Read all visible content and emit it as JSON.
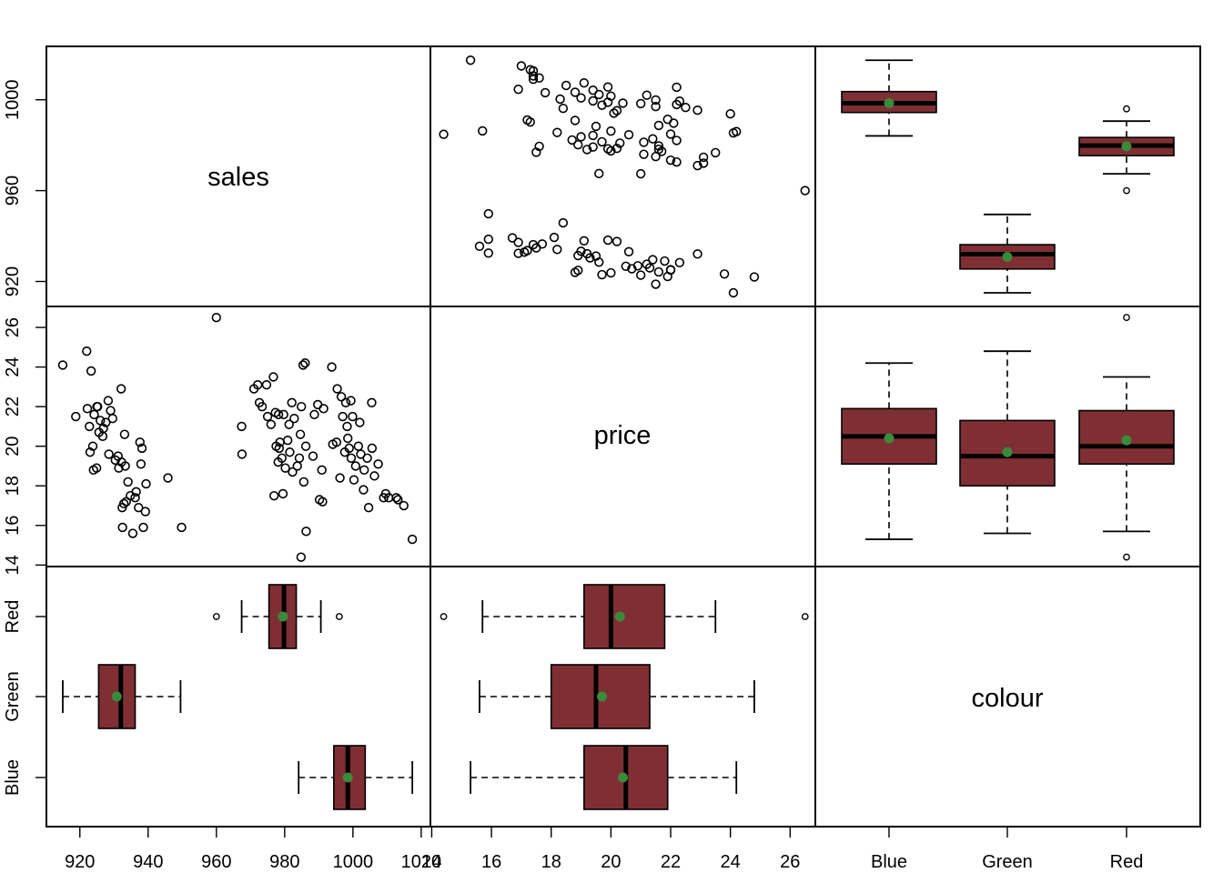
{
  "chart_data": {
    "type": "scatter-matrix",
    "variables": [
      "sales",
      "price",
      "colour"
    ],
    "styles": {
      "box_fill": "#7f2f33",
      "mean_color": "#3a8a3a",
      "median_color": "#000000"
    },
    "ticks": {
      "sales": [
        920,
        940,
        960,
        980,
        1000,
        1020
      ],
      "price": [
        14,
        16,
        18,
        20,
        22,
        24,
        26
      ],
      "colour": [
        "Blue",
        "Green",
        "Red"
      ]
    },
    "tick_labels": {
      "sales_axis_left": [
        "920",
        "960",
        "1000"
      ],
      "price_axis_left": [
        "14",
        "16",
        "18",
        "20",
        "22",
        "24",
        "26"
      ],
      "colour_axis_left": [
        "Blue",
        "Green",
        "Red"
      ],
      "sales_axis_bottom": [
        "920",
        "940",
        "960",
        "980",
        "1000",
        "1020"
      ],
      "price_axis_bottom": [
        "14",
        "16",
        "18",
        "20",
        "22",
        "24",
        "26"
      ],
      "colour_axis_bottom": [
        "Blue",
        "Green",
        "Red"
      ]
    },
    "ranges": {
      "sales": [
        913.4,
        1019.5
      ],
      "price": [
        14.2,
        26.6
      ]
    },
    "groups": {
      "Blue": {
        "sales_box": {
          "lower": 984.1,
          "q1": 994.4,
          "median": 998.5,
          "q3": 1003.6,
          "upper": 1017.4,
          "mean": 998.5,
          "outliers": []
        },
        "price_box": {
          "lower": 15.3,
          "q1": 19.1,
          "median": 20.5,
          "q3": 21.9,
          "upper": 24.2,
          "mean": 20.4,
          "outliers": []
        }
      },
      "Green": {
        "sales_box": {
          "lower": 915.0,
          "q1": 925.5,
          "median": 932.0,
          "q3": 936.2,
          "upper": 949.5,
          "mean": 930.8,
          "outliers": []
        },
        "price_box": {
          "lower": 15.6,
          "q1": 18.0,
          "median": 19.5,
          "q3": 21.3,
          "upper": 24.8,
          "mean": 19.7,
          "outliers": []
        }
      },
      "Red": {
        "sales_box": {
          "lower": 967.4,
          "q1": 975.4,
          "median": 979.8,
          "q3": 983.4,
          "upper": 990.6,
          "mean": 979.5,
          "outliers": [
            960.0,
            996.0
          ]
        },
        "price_box": {
          "lower": 15.7,
          "q1": 19.1,
          "median": 20.0,
          "q3": 21.8,
          "upper": 23.5,
          "mean": 20.3,
          "outliers": [
            14.4,
            26.5
          ]
        }
      }
    },
    "scatter_points": [
      [
        915.0,
        24.1
      ],
      [
        918.8,
        21.5
      ],
      [
        922.0,
        24.8
      ],
      [
        922.2,
        21.9
      ],
      [
        922.8,
        21.0
      ],
      [
        923.0,
        19.7
      ],
      [
        923.3,
        23.8
      ],
      [
        923.8,
        20.0
      ],
      [
        924.0,
        18.8
      ],
      [
        924.2,
        21.6
      ],
      [
        924.9,
        18.9
      ],
      [
        925.0,
        22.0
      ],
      [
        925.2,
        22.0
      ],
      [
        925.6,
        20.7
      ],
      [
        926.0,
        21.3
      ],
      [
        926.7,
        20.5
      ],
      [
        926.9,
        20.9
      ],
      [
        927.6,
        21.2
      ],
      [
        928.3,
        22.3
      ],
      [
        928.5,
        19.6
      ],
      [
        929.0,
        21.8
      ],
      [
        929.6,
        21.4
      ],
      [
        930.4,
        19.3
      ],
      [
        931.2,
        19.5
      ],
      [
        931.4,
        18.9
      ],
      [
        932.1,
        22.9
      ],
      [
        932.2,
        19.2
      ],
      [
        932.4,
        16.9
      ],
      [
        932.5,
        15.9
      ],
      [
        932.9,
        17.1
      ],
      [
        933.1,
        20.6
      ],
      [
        933.3,
        19.0
      ],
      [
        933.6,
        17.2
      ],
      [
        934.1,
        18.2
      ],
      [
        934.8,
        17.5
      ],
      [
        935.5,
        15.6
      ],
      [
        936.2,
        17.4
      ],
      [
        936.5,
        17.7
      ],
      [
        937.2,
        16.9
      ],
      [
        937.6,
        20.2
      ],
      [
        937.9,
        19.1
      ],
      [
        938.2,
        19.9
      ],
      [
        938.6,
        15.9
      ],
      [
        939.2,
        16.7
      ],
      [
        939.4,
        18.1
      ],
      [
        945.8,
        18.4
      ],
      [
        949.8,
        15.9
      ],
      [
        960.0,
        26.5
      ],
      [
        967.4,
        21.0
      ],
      [
        967.5,
        19.6
      ],
      [
        971.0,
        22.9
      ],
      [
        972.1,
        23.1
      ],
      [
        972.6,
        22.2
      ],
      [
        973.4,
        22.0
      ],
      [
        974.7,
        23.1
      ],
      [
        975.0,
        21.5
      ],
      [
        976.0,
        21.1
      ],
      [
        976.7,
        23.5
      ],
      [
        976.9,
        17.5
      ],
      [
        977.3,
        21.7
      ],
      [
        977.5,
        20.0
      ],
      [
        978.1,
        19.2
      ],
      [
        978.2,
        21.6
      ],
      [
        978.4,
        19.9
      ],
      [
        978.6,
        20.2
      ],
      [
        979.2,
        19.4
      ],
      [
        979.5,
        17.6
      ],
      [
        979.7,
        21.6
      ],
      [
        980.2,
        18.9
      ],
      [
        980.9,
        20.3
      ],
      [
        981.3,
        21.1
      ],
      [
        981.5,
        19.7
      ],
      [
        982.1,
        22.2
      ],
      [
        982.3,
        18.7
      ],
      [
        982.8,
        21.4
      ],
      [
        983.7,
        19.0
      ],
      [
        984.3,
        19.4
      ],
      [
        984.6,
        20.6
      ],
      [
        984.8,
        14.4
      ],
      [
        984.9,
        22.0
      ],
      [
        985.4,
        24.1
      ],
      [
        985.6,
        18.2
      ],
      [
        986.0,
        24.2
      ],
      [
        986.2,
        20.0
      ],
      [
        986.3,
        15.7
      ],
      [
        988.3,
        19.5
      ],
      [
        988.7,
        21.6
      ],
      [
        989.7,
        22.1
      ],
      [
        990.2,
        17.3
      ],
      [
        990.9,
        18.8
      ],
      [
        991.1,
        17.2
      ],
      [
        991.4,
        21.9
      ],
      [
        993.8,
        24.0
      ],
      [
        994.1,
        20.1
      ],
      [
        995.2,
        20.2
      ],
      [
        995.4,
        22.9
      ],
      [
        996.2,
        18.4
      ],
      [
        996.6,
        22.5
      ],
      [
        997.0,
        21.5
      ],
      [
        997.6,
        19.7
      ],
      [
        997.9,
        22.2
      ],
      [
        998.3,
        21.0
      ],
      [
        998.5,
        20.4
      ],
      [
        998.9,
        19.9
      ],
      [
        999.4,
        22.3
      ],
      [
        999.5,
        19.4
      ],
      [
        999.9,
        21.5
      ],
      [
        1000.3,
        18.3
      ],
      [
        1000.8,
        19.0
      ],
      [
        1001.6,
        20.0
      ],
      [
        1002.0,
        21.2
      ],
      [
        1002.3,
        19.6
      ],
      [
        1003.1,
        17.8
      ],
      [
        1003.3,
        18.8
      ],
      [
        1004.2,
        19.4
      ],
      [
        1004.6,
        16.9
      ],
      [
        1005.5,
        22.2
      ],
      [
        1005.6,
        19.9
      ],
      [
        1006.3,
        18.5
      ],
      [
        1007.4,
        19.1
      ],
      [
        1009.0,
        17.4
      ],
      [
        1009.6,
        17.6
      ],
      [
        1010.5,
        17.4
      ],
      [
        1012.7,
        17.4
      ],
      [
        1013.2,
        17.3
      ],
      [
        1014.9,
        17.0
      ],
      [
        1017.4,
        15.3
      ]
    ]
  }
}
